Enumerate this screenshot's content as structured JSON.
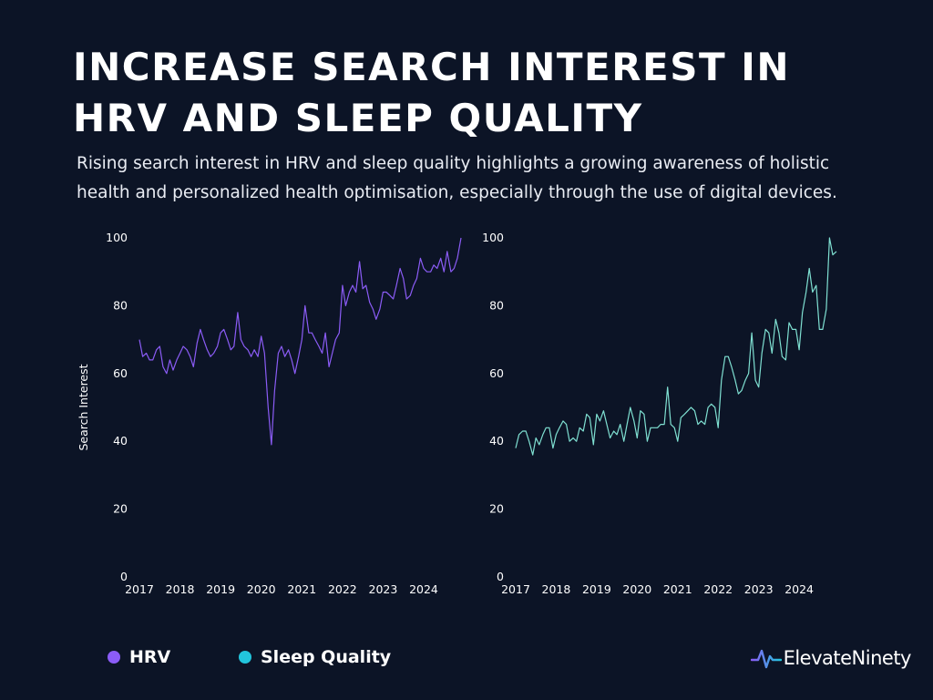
{
  "page": {
    "title": "INCREASE SEARCH INTEREST IN HRV AND SLEEP QUALITY",
    "subtitle": "Rising search interest in HRV and sleep quality highlights a growing awareness of holistic health and personalized health optimisation, especially through the use of digital devices.",
    "brand": "ElevateNinety"
  },
  "colors": {
    "background": "#0c1426",
    "hrv": "#8b5cf6",
    "sleep_legend": "#22c5dc",
    "sleep_line": "#7fe0d2"
  },
  "legend": [
    {
      "label": "HRV",
      "color": "#8b5cf6"
    },
    {
      "label": "Sleep Quality",
      "color": "#22c5dc"
    }
  ],
  "chart_data": [
    {
      "type": "line",
      "ylabel": "Search Interest",
      "ylim": [
        0,
        100
      ],
      "yticks": [
        "0",
        "20",
        "40",
        "60",
        "80",
        "100"
      ],
      "xlim": [
        2017,
        2024.92
      ],
      "xticks": [
        "2017",
        "2018",
        "2019",
        "2020",
        "2021",
        "2022",
        "2023",
        "2024"
      ],
      "grid": false,
      "series": [
        {
          "name": "HRV",
          "color": "#8b5cf6",
          "x": [
            2017.0,
            2017.08,
            2017.17,
            2017.25,
            2017.33,
            2017.42,
            2017.5,
            2017.58,
            2017.67,
            2017.75,
            2017.83,
            2017.92,
            2018.0,
            2018.08,
            2018.17,
            2018.25,
            2018.33,
            2018.42,
            2018.5,
            2018.58,
            2018.67,
            2018.75,
            2018.83,
            2018.92,
            2019.0,
            2019.08,
            2019.17,
            2019.25,
            2019.33,
            2019.42,
            2019.5,
            2019.58,
            2019.67,
            2019.75,
            2019.83,
            2019.92,
            2020.0,
            2020.08,
            2020.17,
            2020.25,
            2020.33,
            2020.42,
            2020.5,
            2020.58,
            2020.67,
            2020.75,
            2020.83,
            2020.92,
            2021.0,
            2021.08,
            2021.17,
            2021.25,
            2021.33,
            2021.42,
            2021.5,
            2021.58,
            2021.67,
            2021.75,
            2021.83,
            2021.92,
            2022.0,
            2022.08,
            2022.17,
            2022.25,
            2022.33,
            2022.42,
            2022.5,
            2022.58,
            2022.67,
            2022.75,
            2022.83,
            2022.92,
            2023.0,
            2023.08,
            2023.17,
            2023.25,
            2023.33,
            2023.42,
            2023.5,
            2023.58,
            2023.67,
            2023.75,
            2023.83,
            2023.92,
            2024.0,
            2024.08,
            2024.17,
            2024.25,
            2024.33,
            2024.42,
            2024.5,
            2024.58,
            2024.67,
            2024.75,
            2024.83,
            2024.92
          ],
          "values": [
            70,
            65,
            66,
            64,
            64,
            67,
            68,
            62,
            60,
            64,
            61,
            64,
            66,
            68,
            67,
            65,
            62,
            69,
            73,
            70,
            67,
            65,
            66,
            68,
            72,
            73,
            70,
            67,
            68,
            78,
            70,
            68,
            67,
            65,
            67,
            65,
            71,
            66,
            50,
            39,
            55,
            66,
            68,
            65,
            67,
            64,
            60,
            65,
            70,
            80,
            72,
            72,
            70,
            68,
            66,
            72,
            62,
            66,
            70,
            72,
            86,
            80,
            84,
            86,
            84,
            93,
            85,
            86,
            81,
            79,
            76,
            79,
            84,
            84,
            83,
            82,
            86,
            91,
            88,
            82,
            83,
            86,
            88,
            94,
            91,
            90,
            90,
            92,
            91,
            94,
            90,
            96,
            90,
            91,
            94,
            100
          ]
        }
      ]
    },
    {
      "type": "line",
      "ylabel": "",
      "ylim": [
        0,
        100
      ],
      "yticks": [
        "0",
        "20",
        "40",
        "60",
        "80",
        "100"
      ],
      "xlim": [
        2017,
        2024.92
      ],
      "xticks": [
        "2017",
        "2018",
        "2019",
        "2020",
        "2021",
        "2022",
        "2023",
        "2024"
      ],
      "grid": false,
      "series": [
        {
          "name": "Sleep Quality",
          "color": "#7fe0d2",
          "x": [
            2017.0,
            2017.08,
            2017.17,
            2017.25,
            2017.33,
            2017.42,
            2017.5,
            2017.58,
            2017.67,
            2017.75,
            2017.83,
            2017.92,
            2018.0,
            2018.08,
            2018.17,
            2018.25,
            2018.33,
            2018.42,
            2018.5,
            2018.58,
            2018.67,
            2018.75,
            2018.83,
            2018.92,
            2019.0,
            2019.08,
            2019.17,
            2019.25,
            2019.33,
            2019.42,
            2019.5,
            2019.58,
            2019.67,
            2019.75,
            2019.83,
            2019.92,
            2020.0,
            2020.08,
            2020.17,
            2020.25,
            2020.33,
            2020.42,
            2020.5,
            2020.58,
            2020.67,
            2020.75,
            2020.83,
            2020.92,
            2021.0,
            2021.08,
            2021.17,
            2021.25,
            2021.33,
            2021.42,
            2021.5,
            2021.58,
            2021.67,
            2021.75,
            2021.83,
            2021.92,
            2022.0,
            2022.08,
            2022.17,
            2022.25,
            2022.33,
            2022.42,
            2022.5,
            2022.58,
            2022.67,
            2022.75,
            2022.83,
            2022.92,
            2023.0,
            2023.08,
            2023.17,
            2023.25,
            2023.33,
            2023.42,
            2023.5,
            2023.58,
            2023.67,
            2023.75,
            2023.83,
            2023.92,
            2024.0,
            2024.08,
            2024.17,
            2024.25,
            2024.33,
            2024.42,
            2024.5,
            2024.58,
            2024.67,
            2024.75,
            2024.83,
            2024.92
          ],
          "values": [
            38,
            42,
            43,
            43,
            40,
            36,
            41,
            39,
            42,
            44,
            44,
            38,
            42,
            44,
            46,
            45,
            40,
            41,
            40,
            44,
            43,
            48,
            47,
            39,
            48,
            46,
            49,
            45,
            41,
            43,
            42,
            45,
            40,
            45,
            50,
            46,
            41,
            49,
            48,
            40,
            44,
            44,
            44,
            45,
            45,
            56,
            45,
            44,
            40,
            47,
            48,
            49,
            50,
            49,
            45,
            46,
            45,
            50,
            51,
            50,
            44,
            58,
            65,
            65,
            62,
            58,
            54,
            55,
            58,
            60,
            72,
            58,
            56,
            66,
            73,
            72,
            66,
            76,
            72,
            65,
            64,
            75,
            73,
            73,
            67,
            78,
            84,
            91,
            84,
            86,
            73,
            73,
            79,
            100,
            95,
            96
          ]
        }
      ]
    }
  ]
}
